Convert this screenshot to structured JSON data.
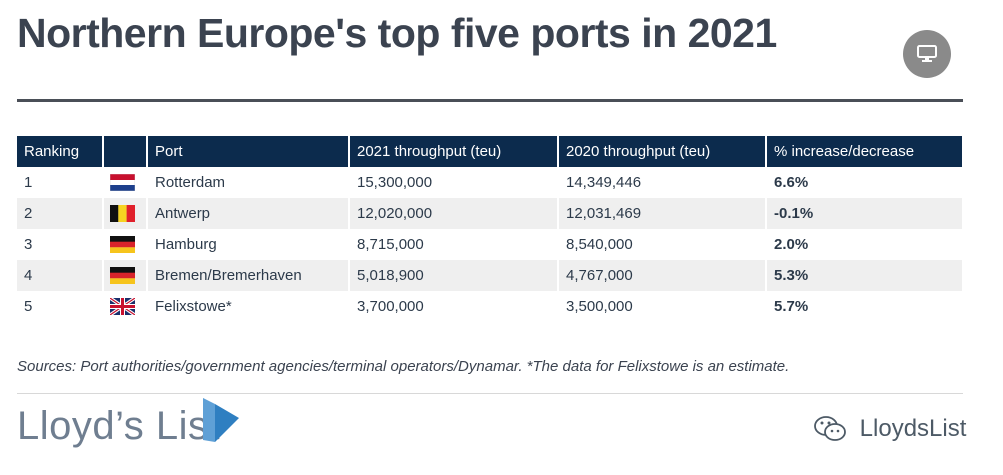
{
  "title": "Northern Europe's top five ports in 2021",
  "table": {
    "headers": [
      "Ranking",
      "",
      "Port",
      "2021 throughput (teu)",
      "2020 throughput (teu)",
      "% increase/decrease"
    ],
    "rows": [
      {
        "rank": "1",
        "flag": "netherlands-flag-icon",
        "port": "Rotterdam",
        "t2021": "15,300,000",
        "t2020": "14,349,446",
        "change": "6.6%"
      },
      {
        "rank": "2",
        "flag": "belgium-flag-icon",
        "port": "Antwerp",
        "t2021": "12,020,000",
        "t2020": "12,031,469",
        "change": "-0.1%"
      },
      {
        "rank": "3",
        "flag": "germany-flag-icon",
        "port": "Hamburg",
        "t2021": "8,715,000",
        "t2020": "8,540,000",
        "change": "2.0%"
      },
      {
        "rank": "4",
        "flag": "germany-flag-icon",
        "port": "Bremen/Bremerhaven",
        "t2021": "5,018,900",
        "t2020": "4,767,000",
        "change": "5.3%"
      },
      {
        "rank": "5",
        "flag": "uk-flag-icon",
        "port": "Felixstowe*",
        "t2021": "3,700,000",
        "t2020": "3,500,000",
        "change": "5.7%"
      }
    ]
  },
  "sources": "Sources: Port authorities/government agencies/terminal operators/Dynamar. *The data for Felixstowe is an estimate.",
  "logo": "Lloyd’s List",
  "watermark": "LloydsList",
  "colors": {
    "header_bg": "#0c2b4d",
    "title": "#3b4350",
    "logo": "#6f7e90",
    "logo_mark": "#2f7fc1"
  }
}
